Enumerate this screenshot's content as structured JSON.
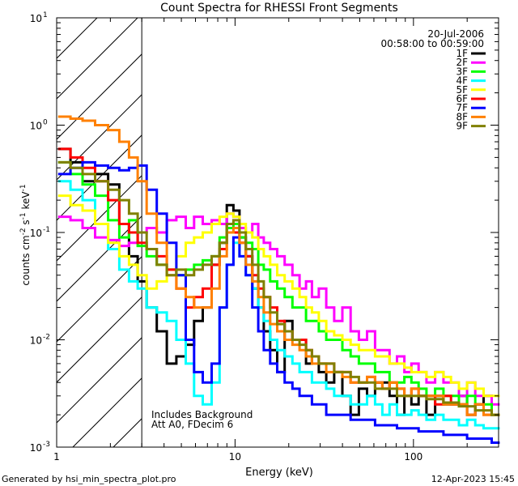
{
  "footer": {
    "generated_by": "Generated by hsi_min_spectra_plot.pro",
    "timestamp": "12-Apr-2023 15:45"
  },
  "chart_data": {
    "type": "line",
    "title": "Count Spectra for RHESSI Front Segments",
    "xlabel": "Energy (keV)",
    "ylabel": "counts cm-2 s-1 keV-1",
    "xscale": "log",
    "yscale": "log",
    "xlim": [
      1,
      300
    ],
    "ylim": [
      0.001,
      10
    ],
    "x_tick_labels": [
      {
        "value": 1,
        "label": "1"
      },
      {
        "value": 10,
        "label": "10"
      },
      {
        "value": 100,
        "label": "100"
      }
    ],
    "y_tick_labels": [
      {
        "value": 0.001,
        "label": "10",
        "exp": "-3"
      },
      {
        "value": 0.01,
        "label": "10",
        "exp": "-2"
      },
      {
        "value": 0.1,
        "label": "10",
        "exp": "-1"
      },
      {
        "value": 1,
        "label": "10",
        "exp": "0"
      },
      {
        "value": 10,
        "label": "10",
        "exp": "1"
      }
    ],
    "date": "20-Jul-2006",
    "time_range": "00:58:00 to 00:59:00",
    "annotations": [
      "Includes Background",
      "Att A0, FDecim 6"
    ],
    "excluded_region_max_energy": 3,
    "legend_position": "top-right",
    "series": [
      {
        "name": "1F",
        "color": "#000000",
        "x": [
          1.1,
          1.3,
          1.5,
          1.8,
          2.1,
          2.4,
          2.7,
          3.0,
          3.4,
          3.9,
          4.4,
          5.0,
          5.6,
          6.2,
          7.0,
          7.8,
          8.6,
          9.4,
          10.2,
          11,
          12,
          13,
          14,
          15,
          16.5,
          18,
          20,
          22,
          24,
          26,
          28,
          31,
          34,
          38,
          42,
          47,
          52,
          58,
          64,
          70,
          77,
          85,
          93,
          102,
          112,
          125,
          140,
          155,
          170,
          190,
          210,
          235,
          260,
          290
        ],
        "y": [
          0.6,
          0.45,
          0.3,
          0.35,
          0.28,
          0.12,
          0.06,
          0.035,
          0.02,
          0.012,
          0.006,
          0.007,
          0.009,
          0.015,
          0.02,
          0.05,
          0.08,
          0.18,
          0.16,
          0.09,
          0.06,
          0.03,
          0.02,
          0.012,
          0.008,
          0.005,
          0.015,
          0.01,
          0.01,
          0.006,
          0.007,
          0.005,
          0.004,
          0.005,
          0.003,
          0.002,
          0.0035,
          0.003,
          0.004,
          0.004,
          0.003,
          0.002,
          0.003,
          0.0025,
          0.003,
          0.002,
          0.003,
          0.0025,
          0.0025,
          0.003,
          0.002,
          0.0025,
          0.003,
          0.002
        ]
      },
      {
        "name": "2F",
        "color": "#ff00ff",
        "x": [
          1.1,
          1.3,
          1.5,
          1.8,
          2.1,
          2.4,
          2.7,
          3.0,
          3.4,
          3.9,
          4.4,
          5.0,
          5.6,
          6.2,
          7.0,
          7.8,
          8.6,
          9.4,
          10.2,
          11,
          12,
          13,
          14,
          15,
          16.5,
          18,
          20,
          22,
          24,
          26,
          28,
          31,
          34,
          38,
          42,
          47,
          52,
          58,
          64,
          70,
          77,
          85,
          93,
          102,
          112,
          125,
          140,
          155,
          170,
          190,
          210,
          235,
          260,
          290
        ],
        "y": [
          0.14,
          0.13,
          0.11,
          0.09,
          0.085,
          0.075,
          0.08,
          0.1,
          0.11,
          0.1,
          0.13,
          0.14,
          0.11,
          0.14,
          0.12,
          0.13,
          0.12,
          0.15,
          0.14,
          0.11,
          0.1,
          0.12,
          0.09,
          0.08,
          0.07,
          0.06,
          0.05,
          0.04,
          0.03,
          0.035,
          0.025,
          0.03,
          0.02,
          0.015,
          0.02,
          0.012,
          0.01,
          0.012,
          0.008,
          0.008,
          0.006,
          0.007,
          0.005,
          0.006,
          0.005,
          0.004,
          0.005,
          0.004,
          0.004,
          0.003,
          0.004,
          0.003,
          0.003,
          0.0025
        ]
      },
      {
        "name": "3F",
        "color": "#00ff00",
        "x": [
          1.1,
          1.3,
          1.5,
          1.8,
          2.1,
          2.4,
          2.7,
          3.0,
          3.4,
          3.9,
          4.4,
          5.0,
          5.6,
          6.2,
          7.0,
          7.8,
          8.6,
          9.4,
          10.2,
          11,
          12,
          13,
          14,
          15,
          16.5,
          18,
          20,
          22,
          24,
          26,
          28,
          31,
          34,
          38,
          42,
          47,
          52,
          58,
          64,
          70,
          77,
          85,
          93,
          102,
          112,
          125,
          140,
          155,
          170,
          190,
          210,
          235,
          260,
          290
        ],
        "y": [
          0.45,
          0.35,
          0.28,
          0.22,
          0.13,
          0.09,
          0.13,
          0.075,
          0.06,
          0.05,
          0.045,
          0.04,
          0.045,
          0.05,
          0.055,
          0.06,
          0.09,
          0.11,
          0.12,
          0.09,
          0.08,
          0.07,
          0.05,
          0.045,
          0.035,
          0.03,
          0.025,
          0.02,
          0.02,
          0.015,
          0.015,
          0.012,
          0.01,
          0.01,
          0.008,
          0.007,
          0.006,
          0.006,
          0.005,
          0.005,
          0.004,
          0.004,
          0.0045,
          0.004,
          0.0035,
          0.003,
          0.0035,
          0.003,
          0.003,
          0.0025,
          0.003,
          0.0025,
          0.0025,
          0.002
        ]
      },
      {
        "name": "4F",
        "color": "#00ffff",
        "x": [
          1.1,
          1.3,
          1.5,
          1.8,
          2.1,
          2.4,
          2.7,
          3.0,
          3.4,
          3.9,
          4.4,
          5.0,
          5.6,
          6.2,
          7.0,
          7.8,
          8.6,
          9.4,
          10.2,
          11,
          12,
          13,
          14,
          15,
          16.5,
          18,
          20,
          22,
          24,
          26,
          28,
          31,
          34,
          38,
          42,
          47,
          52,
          58,
          64,
          70,
          77,
          85,
          93,
          102,
          112,
          125,
          140,
          155,
          170,
          190,
          210,
          235,
          260,
          290
        ],
        "y": [
          0.3,
          0.25,
          0.2,
          0.12,
          0.07,
          0.045,
          0.035,
          0.03,
          0.02,
          0.018,
          0.015,
          0.01,
          0.006,
          0.003,
          0.0025,
          0.004,
          0.02,
          0.05,
          0.08,
          0.06,
          0.04,
          0.03,
          0.02,
          0.015,
          0.01,
          0.008,
          0.007,
          0.006,
          0.005,
          0.005,
          0.004,
          0.004,
          0.0035,
          0.003,
          0.003,
          0.0025,
          0.0025,
          0.003,
          0.0025,
          0.002,
          0.0025,
          0.002,
          0.002,
          0.0022,
          0.002,
          0.0018,
          0.002,
          0.0018,
          0.0018,
          0.0016,
          0.0018,
          0.0016,
          0.0015,
          0.0015
        ]
      },
      {
        "name": "5F",
        "color": "#ffff00",
        "x": [
          1.1,
          1.3,
          1.5,
          1.8,
          2.1,
          2.4,
          2.7,
          3.0,
          3.4,
          3.9,
          4.4,
          5.0,
          5.6,
          6.2,
          7.0,
          7.8,
          8.6,
          9.4,
          10.2,
          11,
          12,
          13,
          14,
          15,
          16.5,
          18,
          20,
          22,
          24,
          26,
          28,
          31,
          34,
          38,
          42,
          47,
          52,
          58,
          64,
          70,
          77,
          85,
          93,
          102,
          112,
          125,
          140,
          155,
          170,
          190,
          210,
          235,
          260,
          290
        ],
        "y": [
          0.22,
          0.18,
          0.16,
          0.12,
          0.08,
          0.06,
          0.05,
          0.04,
          0.03,
          0.035,
          0.045,
          0.06,
          0.08,
          0.09,
          0.1,
          0.12,
          0.14,
          0.15,
          0.14,
          0.12,
          0.1,
          0.09,
          0.07,
          0.06,
          0.05,
          0.04,
          0.035,
          0.03,
          0.025,
          0.02,
          0.018,
          0.015,
          0.012,
          0.011,
          0.01,
          0.009,
          0.008,
          0.008,
          0.007,
          0.007,
          0.006,
          0.006,
          0.0055,
          0.005,
          0.005,
          0.0045,
          0.005,
          0.0045,
          0.004,
          0.0035,
          0.004,
          0.0035,
          0.003,
          0.003
        ]
      },
      {
        "name": "6F",
        "color": "#ff0000",
        "x": [
          1.1,
          1.3,
          1.5,
          1.8,
          2.1,
          2.4,
          2.7,
          3.0,
          3.4,
          3.9,
          4.4,
          5.0,
          5.6,
          6.2,
          7.0,
          7.8,
          8.6,
          9.4,
          10.2,
          11,
          12,
          13,
          14,
          15,
          16.5,
          18,
          20,
          22,
          24,
          26,
          28,
          31,
          34,
          38,
          42,
          47,
          52,
          58,
          64,
          70,
          77,
          85,
          93,
          102,
          112,
          125,
          140,
          155,
          170,
          190,
          210,
          235,
          260,
          290
        ],
        "y": [
          0.6,
          0.5,
          0.4,
          0.3,
          0.2,
          0.12,
          0.1,
          0.08,
          0.07,
          0.06,
          0.045,
          0.03,
          0.02,
          0.025,
          0.03,
          0.05,
          0.07,
          0.1,
          0.1,
          0.08,
          0.06,
          0.04,
          0.03,
          0.025,
          0.02,
          0.015,
          0.012,
          0.01,
          0.01,
          0.008,
          0.007,
          0.006,
          0.006,
          0.005,
          0.005,
          0.004,
          0.004,
          0.0045,
          0.004,
          0.0035,
          0.004,
          0.0035,
          0.003,
          0.0035,
          0.003,
          0.003,
          0.0025,
          0.003,
          0.0025,
          0.0025,
          0.002,
          0.0025,
          0.002,
          0.002
        ]
      },
      {
        "name": "7F",
        "color": "#0000ff",
        "x": [
          1.1,
          1.3,
          1.5,
          1.8,
          2.1,
          2.4,
          2.7,
          3.0,
          3.4,
          3.9,
          4.4,
          5.0,
          5.6,
          6.2,
          7.0,
          7.8,
          8.6,
          9.4,
          10.2,
          11,
          12,
          13,
          14,
          15,
          16.5,
          18,
          20,
          22,
          24,
          26,
          28,
          31,
          34,
          38,
          42,
          47,
          52,
          58,
          64,
          70,
          77,
          85,
          93,
          102,
          112,
          125,
          140,
          155,
          170,
          190,
          210,
          235,
          260,
          290
        ],
        "y": [
          0.35,
          0.4,
          0.45,
          0.42,
          0.4,
          0.38,
          0.4,
          0.42,
          0.25,
          0.15,
          0.08,
          0.04,
          0.01,
          0.005,
          0.004,
          0.006,
          0.02,
          0.05,
          0.09,
          0.06,
          0.04,
          0.02,
          0.012,
          0.008,
          0.006,
          0.005,
          0.004,
          0.0035,
          0.003,
          0.003,
          0.0025,
          0.0025,
          0.002,
          0.002,
          0.002,
          0.0018,
          0.0018,
          0.0018,
          0.0016,
          0.0016,
          0.0016,
          0.0015,
          0.0015,
          0.0015,
          0.0014,
          0.0014,
          0.0014,
          0.0013,
          0.0013,
          0.0013,
          0.0012,
          0.0012,
          0.0012,
          0.0011
        ]
      },
      {
        "name": "8F",
        "color": "#ff8000",
        "x": [
          1.1,
          1.3,
          1.5,
          1.8,
          2.1,
          2.4,
          2.7,
          3.0,
          3.4,
          3.9,
          4.4,
          5.0,
          5.6,
          6.2,
          7.0,
          7.8,
          8.6,
          9.4,
          10.2,
          11,
          12,
          13,
          14,
          15,
          16.5,
          18,
          20,
          22,
          24,
          26,
          28,
          31,
          34,
          38,
          42,
          47,
          52,
          58,
          64,
          70,
          77,
          85,
          93,
          102,
          112,
          125,
          140,
          155,
          170,
          190,
          210,
          235,
          260,
          290
        ],
        "y": [
          1.2,
          1.15,
          1.1,
          1.0,
          0.9,
          0.7,
          0.5,
          0.3,
          0.15,
          0.08,
          0.04,
          0.03,
          0.025,
          0.02,
          0.02,
          0.03,
          0.06,
          0.1,
          0.11,
          0.08,
          0.05,
          0.035,
          0.025,
          0.018,
          0.014,
          0.012,
          0.01,
          0.009,
          0.008,
          0.007,
          0.006,
          0.006,
          0.005,
          0.005,
          0.0045,
          0.004,
          0.004,
          0.0045,
          0.004,
          0.0035,
          0.004,
          0.0035,
          0.003,
          0.0035,
          0.003,
          0.003,
          0.003,
          0.0025,
          0.0025,
          0.0025,
          0.002,
          0.0025,
          0.002,
          0.002
        ]
      },
      {
        "name": "9F",
        "color": "#808000",
        "x": [
          1.1,
          1.3,
          1.5,
          1.8,
          2.1,
          2.4,
          2.7,
          3.0,
          3.4,
          3.9,
          4.4,
          5.0,
          5.6,
          6.2,
          7.0,
          7.8,
          8.6,
          9.4,
          10.2,
          11,
          12,
          13,
          14,
          15,
          16.5,
          18,
          20,
          22,
          24,
          26,
          28,
          31,
          34,
          38,
          42,
          47,
          52,
          58,
          64,
          70,
          77,
          85,
          93,
          102,
          112,
          125,
          140,
          155,
          170,
          190,
          210,
          235,
          260,
          290
        ],
        "y": [
          0.45,
          0.4,
          0.35,
          0.3,
          0.25,
          0.2,
          0.15,
          0.1,
          0.07,
          0.05,
          0.04,
          0.045,
          0.04,
          0.045,
          0.05,
          0.06,
          0.08,
          0.12,
          0.13,
          0.1,
          0.07,
          0.05,
          0.035,
          0.025,
          0.018,
          0.014,
          0.012,
          0.01,
          0.009,
          0.008,
          0.007,
          0.006,
          0.006,
          0.005,
          0.005,
          0.0045,
          0.004,
          0.004,
          0.0035,
          0.0035,
          0.0035,
          0.003,
          0.003,
          0.003,
          0.003,
          0.0028,
          0.0028,
          0.0026,
          0.0026,
          0.0024,
          0.0024,
          0.0022,
          0.0022,
          0.002
        ]
      }
    ]
  }
}
